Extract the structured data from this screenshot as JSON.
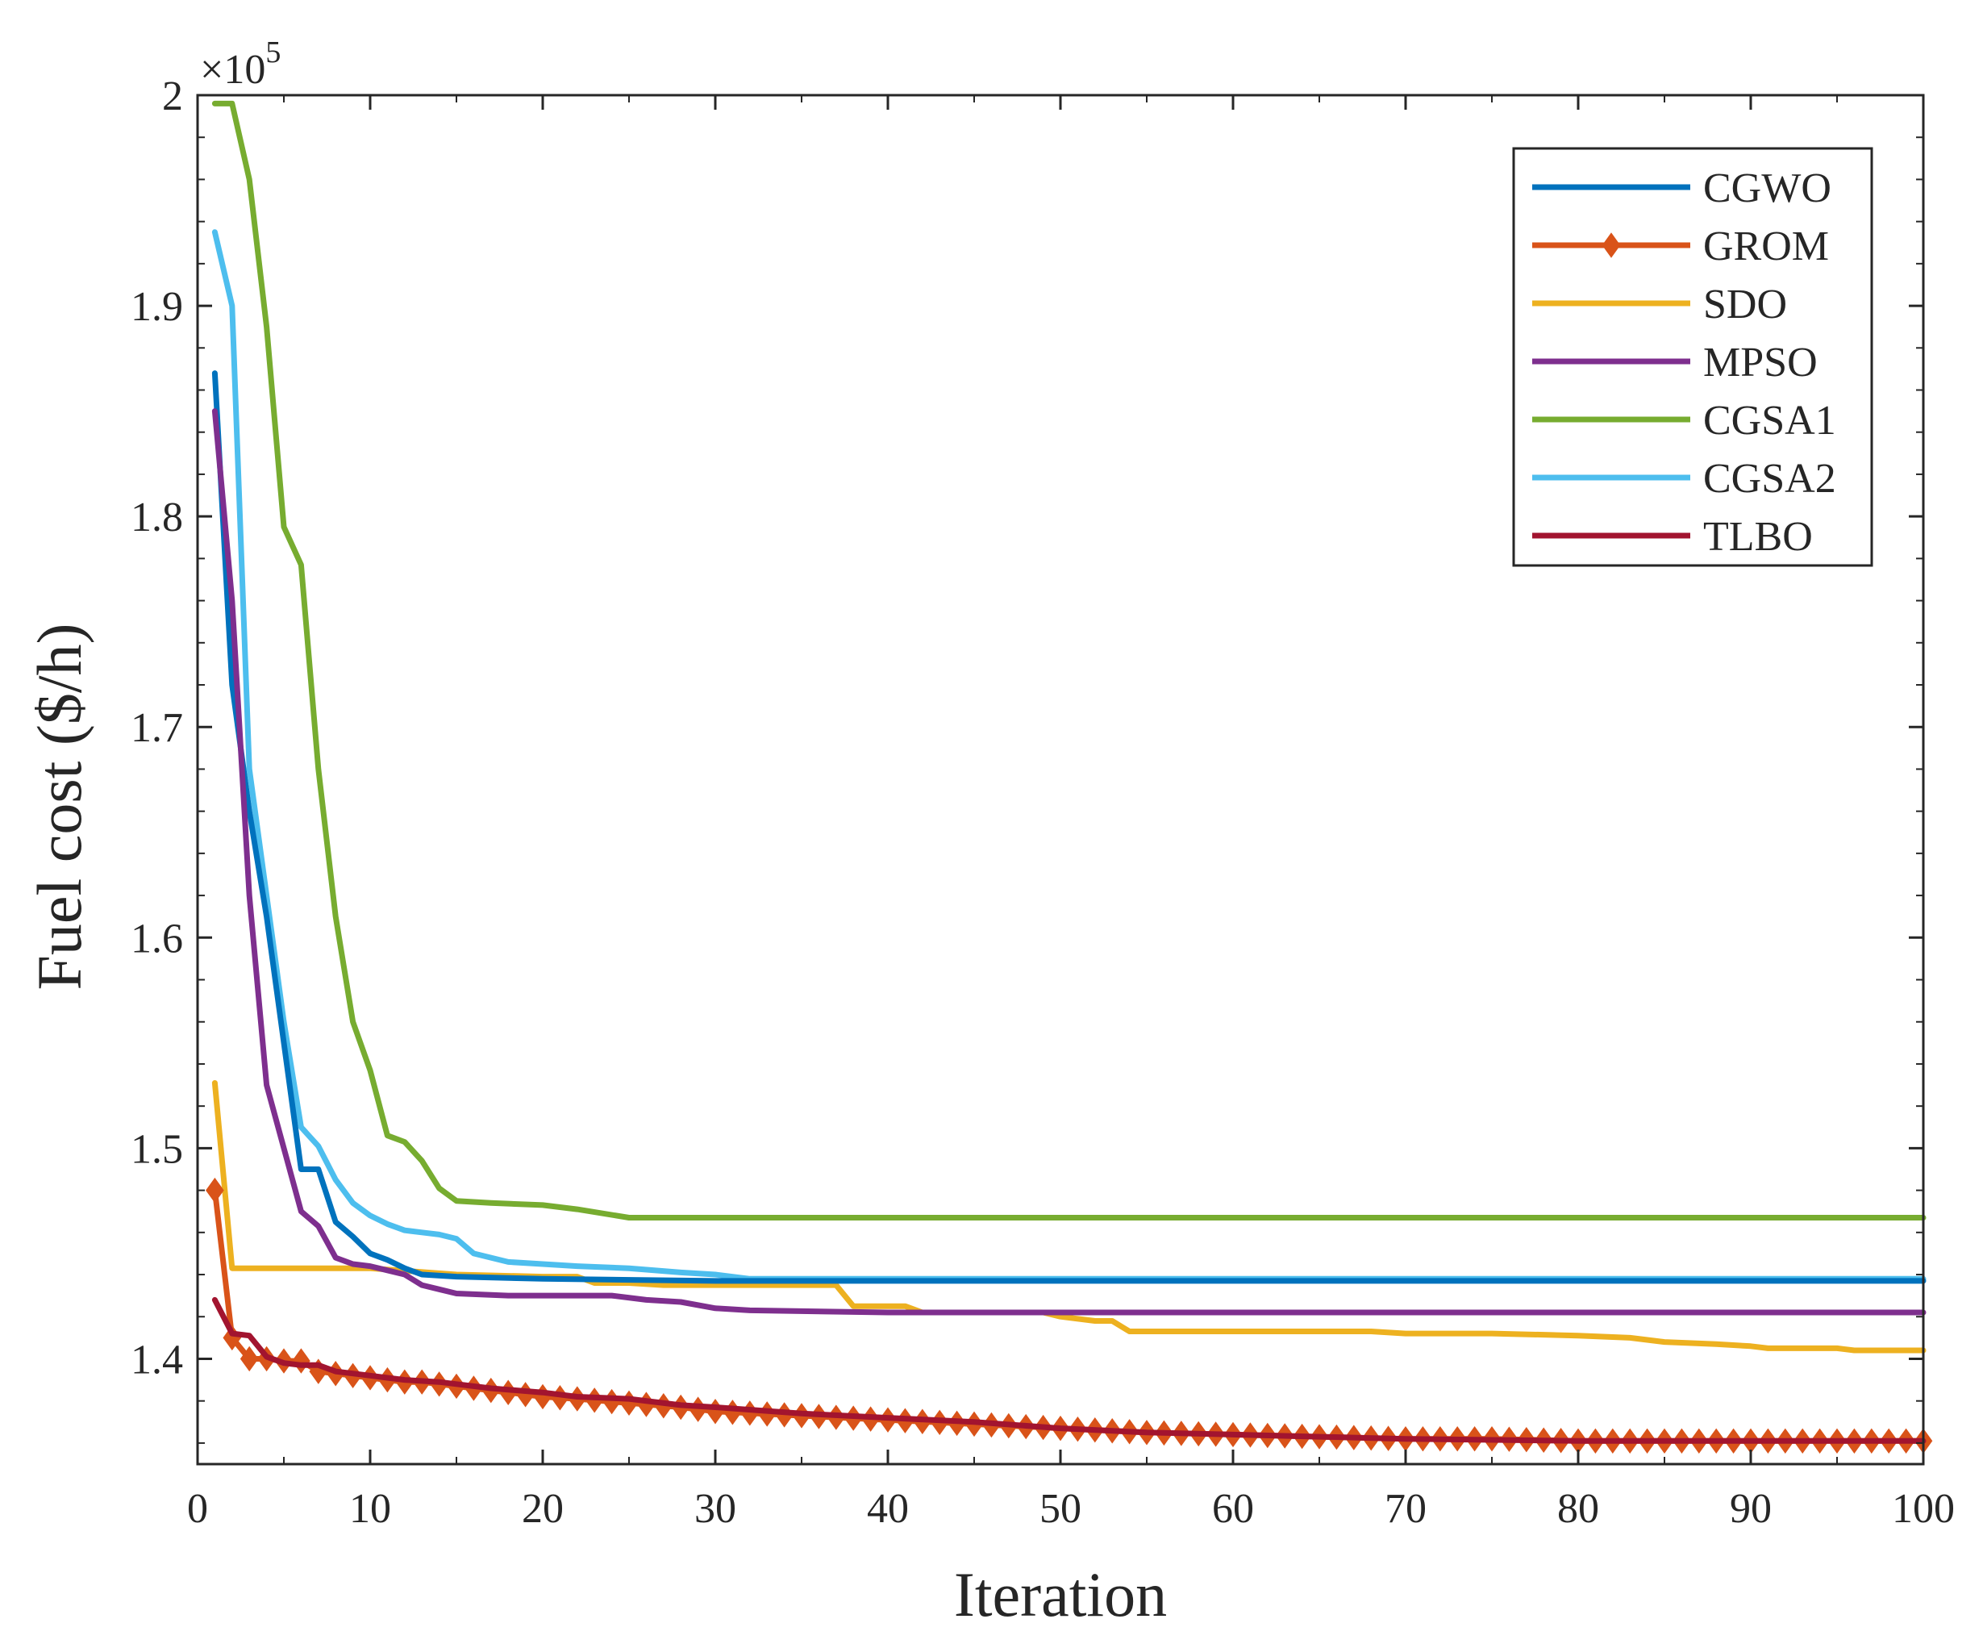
{
  "chart_data": {
    "type": "line",
    "title": "",
    "xlabel": "Iteration",
    "ylabel": "Fuel cost ($/h)",
    "y_exponent": "×10^5",
    "y_exponent_base": "×10",
    "y_exponent_power": "5",
    "xlim": [
      0,
      100
    ],
    "ylim": [
      1.35,
      2.0
    ],
    "xticks": [
      0,
      10,
      20,
      30,
      40,
      50,
      60,
      70,
      80,
      90,
      100
    ],
    "xtick_labels": [
      "0",
      "10",
      "20",
      "30",
      "40",
      "50",
      "60",
      "70",
      "80",
      "90",
      "100"
    ],
    "yticks": [
      1.4,
      1.5,
      1.6,
      1.7,
      1.8,
      1.9,
      2.0
    ],
    "ytick_labels": [
      "1.4",
      "1.5",
      "1.6",
      "1.7",
      "1.8",
      "1.9",
      "2"
    ],
    "legend_position": "top-right",
    "series": [
      {
        "name": "CGWO",
        "color": "#0072bd",
        "marker": "none",
        "points": [
          [
            1,
            1.868
          ],
          [
            2,
            1.72
          ],
          [
            3,
            1.66
          ],
          [
            4,
            1.61
          ],
          [
            5,
            1.55
          ],
          [
            6,
            1.49
          ],
          [
            7,
            1.49
          ],
          [
            8,
            1.465
          ],
          [
            9,
            1.458
          ],
          [
            10,
            1.45
          ],
          [
            11,
            1.447
          ],
          [
            12,
            1.443
          ],
          [
            13,
            1.44
          ],
          [
            15,
            1.439
          ],
          [
            20,
            1.438
          ],
          [
            30,
            1.437
          ],
          [
            31,
            1.437
          ],
          [
            100,
            1.437
          ]
        ]
      },
      {
        "name": "GROM",
        "color": "#d95319",
        "marker": "diamond",
        "points": [
          [
            1,
            1.48
          ],
          [
            2,
            1.41
          ],
          [
            3,
            1.4
          ],
          [
            4,
            1.4
          ],
          [
            5,
            1.399
          ],
          [
            6,
            1.399
          ],
          [
            7,
            1.394
          ],
          [
            8,
            1.393
          ],
          [
            9,
            1.392
          ],
          [
            10,
            1.391
          ],
          [
            11,
            1.39
          ],
          [
            12,
            1.389
          ],
          [
            13,
            1.389
          ],
          [
            14,
            1.388
          ],
          [
            15,
            1.387
          ],
          [
            16,
            1.386
          ],
          [
            17,
            1.385
          ],
          [
            18,
            1.384
          ],
          [
            19,
            1.383
          ],
          [
            20,
            1.382
          ],
          [
            22,
            1.381
          ],
          [
            25,
            1.379
          ],
          [
            28,
            1.377
          ],
          [
            30,
            1.375
          ],
          [
            35,
            1.373
          ],
          [
            40,
            1.371
          ],
          [
            45,
            1.369
          ],
          [
            50,
            1.367
          ],
          [
            55,
            1.365
          ],
          [
            60,
            1.364
          ],
          [
            65,
            1.363
          ],
          [
            70,
            1.362
          ],
          [
            75,
            1.362
          ],
          [
            80,
            1.361
          ],
          [
            85,
            1.361
          ],
          [
            90,
            1.361
          ],
          [
            95,
            1.361
          ],
          [
            100,
            1.361
          ]
        ]
      },
      {
        "name": "SDO",
        "color": "#edb120",
        "marker": "none",
        "points": [
          [
            1,
            1.531
          ],
          [
            2,
            1.443
          ],
          [
            10,
            1.443
          ],
          [
            15,
            1.44
          ],
          [
            20,
            1.439
          ],
          [
            22,
            1.439
          ],
          [
            23,
            1.436
          ],
          [
            25,
            1.436
          ],
          [
            27,
            1.435
          ],
          [
            30,
            1.435
          ],
          [
            37,
            1.435
          ],
          [
            38,
            1.425
          ],
          [
            41,
            1.425
          ],
          [
            42,
            1.422
          ],
          [
            49,
            1.422
          ],
          [
            50,
            1.42
          ],
          [
            52,
            1.418
          ],
          [
            53,
            1.418
          ],
          [
            54,
            1.413
          ],
          [
            60,
            1.413
          ],
          [
            68,
            1.413
          ],
          [
            70,
            1.412
          ],
          [
            75,
            1.412
          ],
          [
            80,
            1.411
          ],
          [
            83,
            1.41
          ],
          [
            85,
            1.408
          ],
          [
            88,
            1.407
          ],
          [
            90,
            1.406
          ],
          [
            91,
            1.405
          ],
          [
            95,
            1.405
          ],
          [
            96,
            1.404
          ],
          [
            100,
            1.404
          ]
        ]
      },
      {
        "name": "MPSO",
        "color": "#7e2f8e",
        "marker": "none",
        "points": [
          [
            1,
            1.85
          ],
          [
            2,
            1.76
          ],
          [
            3,
            1.62
          ],
          [
            4,
            1.53
          ],
          [
            5,
            1.5
          ],
          [
            6,
            1.47
          ],
          [
            7,
            1.463
          ],
          [
            8,
            1.448
          ],
          [
            9,
            1.445
          ],
          [
            10,
            1.444
          ],
          [
            11,
            1.442
          ],
          [
            12,
            1.44
          ],
          [
            13,
            1.435
          ],
          [
            14,
            1.433
          ],
          [
            15,
            1.431
          ],
          [
            18,
            1.43
          ],
          [
            20,
            1.43
          ],
          [
            24,
            1.43
          ],
          [
            26,
            1.428
          ],
          [
            28,
            1.427
          ],
          [
            30,
            1.424
          ],
          [
            32,
            1.423
          ],
          [
            40,
            1.422
          ],
          [
            100,
            1.422
          ]
        ]
      },
      {
        "name": "CGSA1",
        "color": "#77ac30",
        "marker": "none",
        "points": [
          [
            1,
            1.996
          ],
          [
            2,
            1.996
          ],
          [
            3,
            1.96
          ],
          [
            4,
            1.89
          ],
          [
            5,
            1.795
          ],
          [
            6,
            1.777
          ],
          [
            7,
            1.68
          ],
          [
            8,
            1.61
          ],
          [
            9,
            1.56
          ],
          [
            10,
            1.537
          ],
          [
            11,
            1.506
          ],
          [
            12,
            1.503
          ],
          [
            13,
            1.494
          ],
          [
            14,
            1.481
          ],
          [
            15,
            1.475
          ],
          [
            17,
            1.474
          ],
          [
            20,
            1.473
          ],
          [
            22,
            1.471
          ],
          [
            25,
            1.467
          ],
          [
            30,
            1.467
          ],
          [
            100,
            1.467
          ]
        ]
      },
      {
        "name": "CGSA2",
        "color": "#4dbeee",
        "marker": "none",
        "points": [
          [
            1,
            1.935
          ],
          [
            2,
            1.9
          ],
          [
            3,
            1.68
          ],
          [
            4,
            1.62
          ],
          [
            5,
            1.56
          ],
          [
            6,
            1.51
          ],
          [
            7,
            1.501
          ],
          [
            8,
            1.485
          ],
          [
            9,
            1.474
          ],
          [
            10,
            1.468
          ],
          [
            11,
            1.464
          ],
          [
            12,
            1.461
          ],
          [
            13,
            1.46
          ],
          [
            14,
            1.459
          ],
          [
            15,
            1.457
          ],
          [
            16,
            1.45
          ],
          [
            17,
            1.448
          ],
          [
            18,
            1.446
          ],
          [
            20,
            1.445
          ],
          [
            22,
            1.444
          ],
          [
            25,
            1.443
          ],
          [
            28,
            1.441
          ],
          [
            30,
            1.44
          ],
          [
            32,
            1.438
          ],
          [
            35,
            1.438
          ],
          [
            100,
            1.438
          ]
        ]
      },
      {
        "name": "TLBO",
        "color": "#a2142f",
        "marker": "none",
        "points": [
          [
            1,
            1.428
          ],
          [
            2,
            1.412
          ],
          [
            3,
            1.411
          ],
          [
            4,
            1.401
          ],
          [
            5,
            1.398
          ],
          [
            6,
            1.397
          ],
          [
            7,
            1.397
          ],
          [
            8,
            1.394
          ],
          [
            9,
            1.393
          ],
          [
            10,
            1.392
          ],
          [
            11,
            1.391
          ],
          [
            12,
            1.39
          ],
          [
            14,
            1.389
          ],
          [
            15,
            1.388
          ],
          [
            17,
            1.386
          ],
          [
            20,
            1.384
          ],
          [
            22,
            1.382
          ],
          [
            25,
            1.381
          ],
          [
            28,
            1.378
          ],
          [
            30,
            1.377
          ],
          [
            35,
            1.374
          ],
          [
            40,
            1.372
          ],
          [
            45,
            1.37
          ],
          [
            50,
            1.367
          ],
          [
            55,
            1.365
          ],
          [
            60,
            1.364
          ],
          [
            70,
            1.362
          ],
          [
            80,
            1.361
          ],
          [
            100,
            1.361
          ]
        ]
      }
    ]
  }
}
